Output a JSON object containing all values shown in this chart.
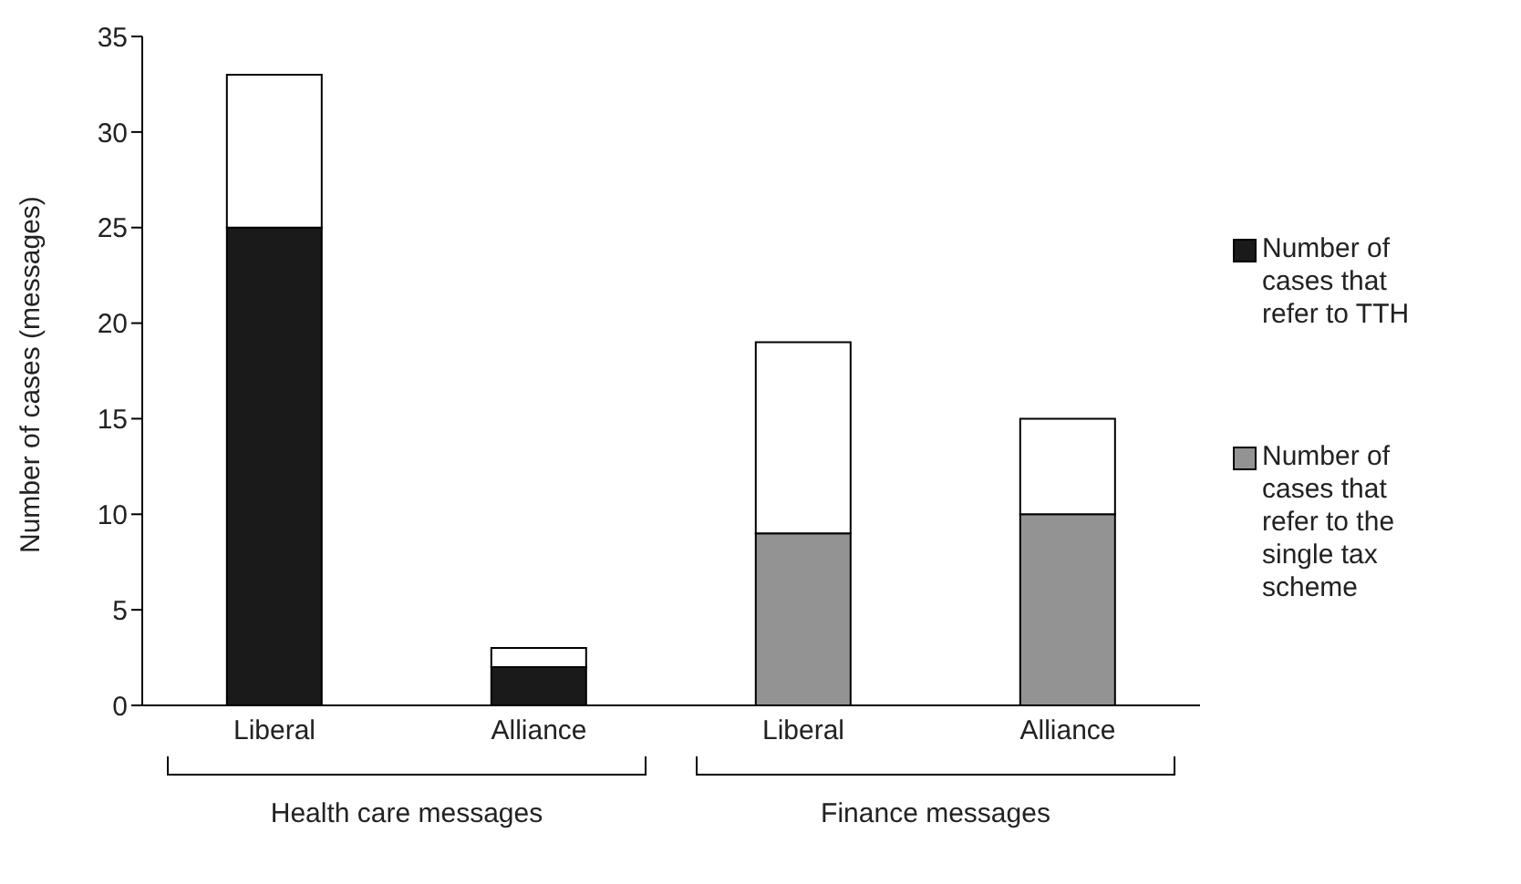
{
  "chart_data": {
    "type": "bar",
    "stacked": true,
    "ylabel": "Number of cases (messages)",
    "categories": [
      "Liberal",
      "Alliance",
      "Liberal",
      "Alliance"
    ],
    "series": [
      {
        "name": "Number of cases that refer to TTH",
        "color": "#1a1a1a",
        "values": [
          25,
          2,
          null,
          null
        ]
      },
      {
        "name": "Number of cases that refer to the single tax scheme",
        "color": "#939393",
        "values": [
          null,
          null,
          9,
          10
        ]
      },
      {
        "color": "#ffffff",
        "values": [
          8,
          1,
          10,
          5
        ]
      }
    ],
    "ylim": [
      0,
      35
    ],
    "yticks": [
      0,
      5,
      10,
      15,
      20,
      25,
      30,
      35
    ],
    "legend": "right",
    "annotations": [
      "Health care messages",
      "Finance messages"
    ]
  }
}
